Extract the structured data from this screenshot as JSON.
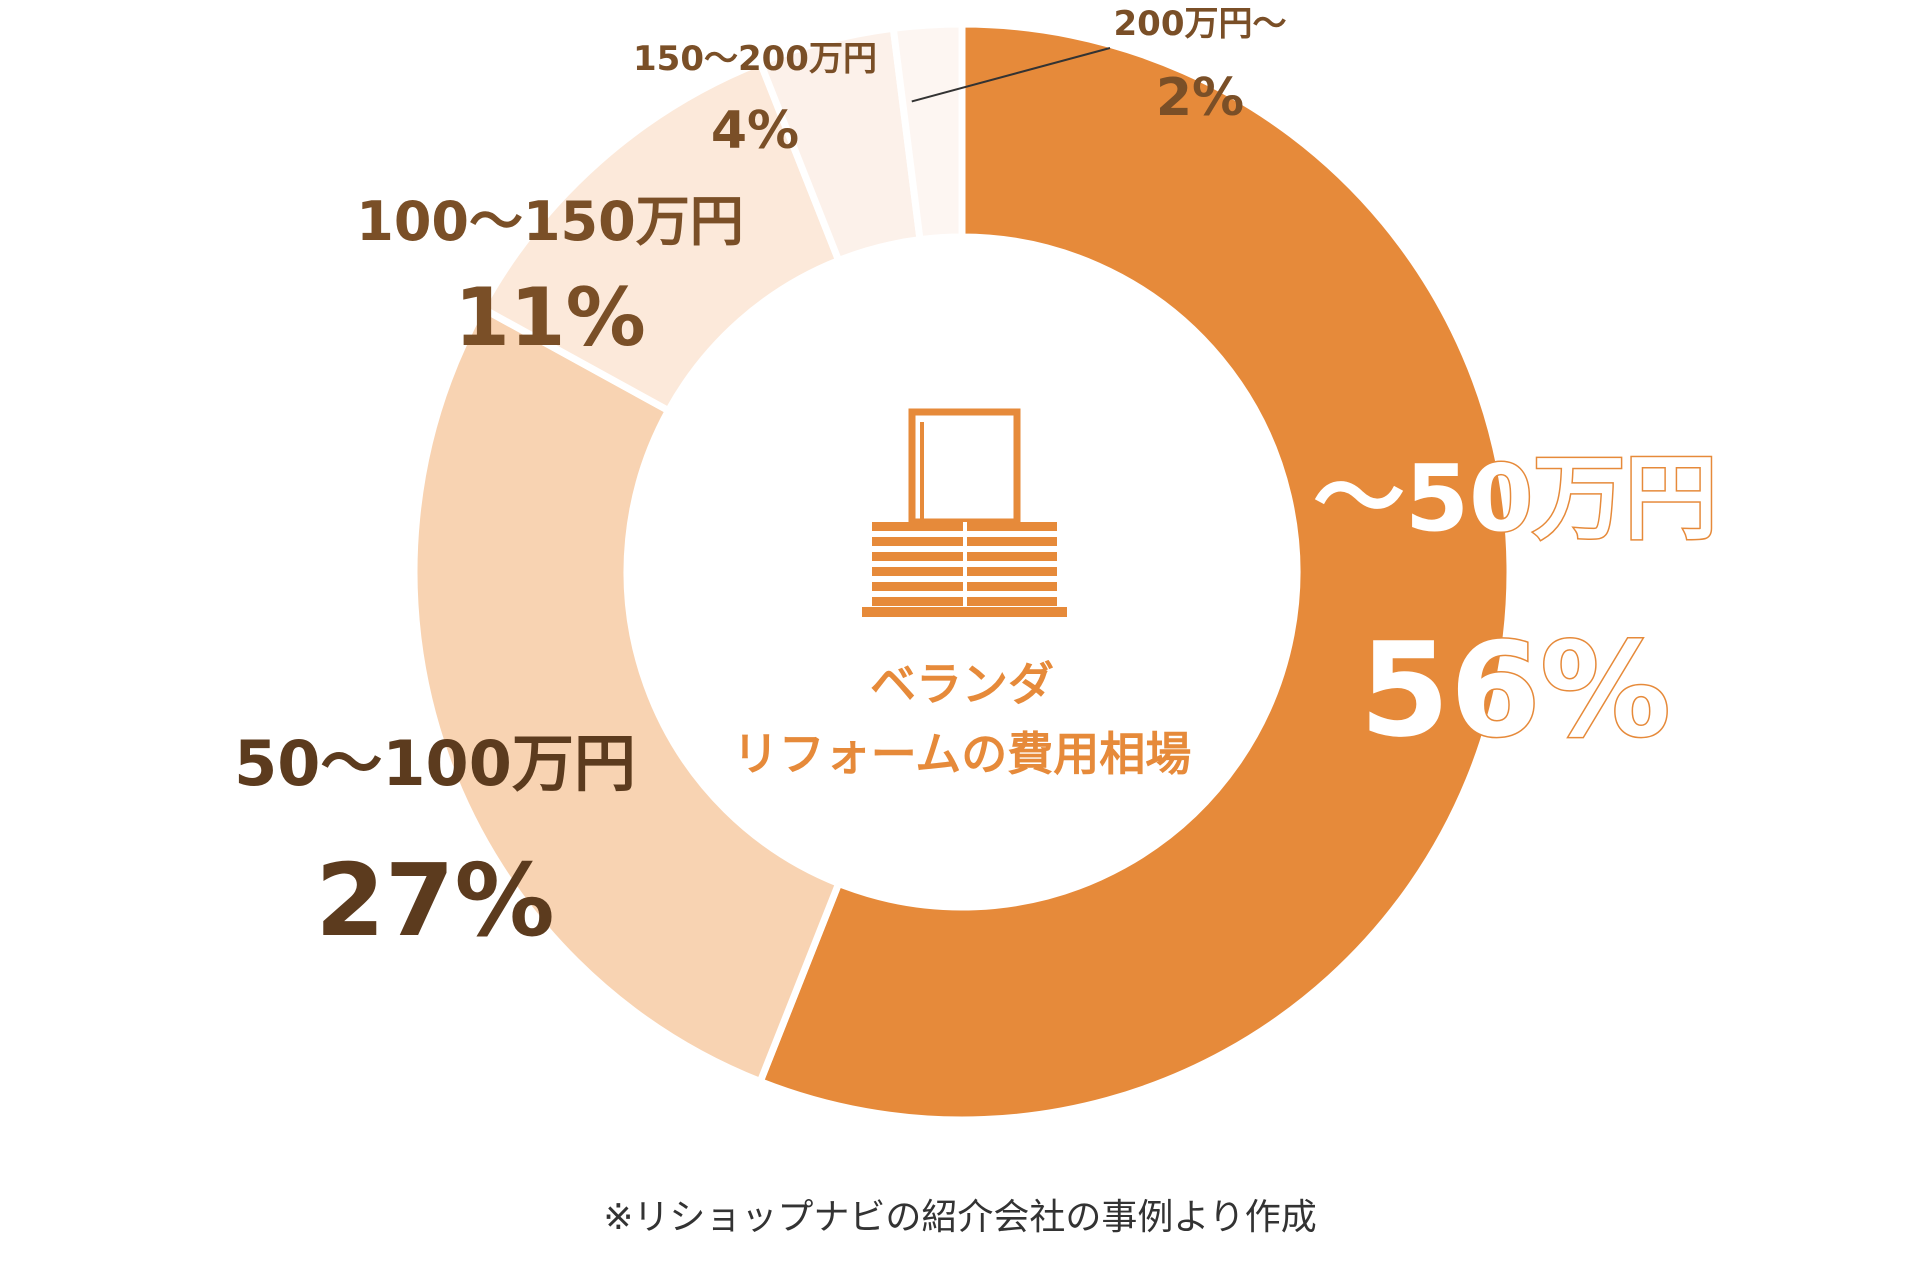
{
  "chart_data": {
    "type": "pie",
    "variant": "donut",
    "title": "ベランダ\nリフォームの費用相場",
    "title_lines": [
      "ベランダ",
      "リフォームの費用相場"
    ],
    "categories": [
      "〜50万円",
      "50〜100万円",
      "100〜150万円",
      "150〜200万円",
      "200万円〜"
    ],
    "values": [
      56,
      27,
      11,
      4,
      2
    ],
    "value_labels": [
      "56%",
      "27%",
      "11%",
      "4%",
      "2%"
    ],
    "unit": "%",
    "colors": [
      "#E68A3A",
      "#F8D3B2",
      "#FCE9DA",
      "#FCF1EA",
      "#FDF6F2"
    ],
    "label_colors": [
      "#ffffff",
      "#5C3B1E",
      "#7A4F27",
      "#7A4F27",
      "#7A4F27"
    ],
    "title_color": "#E68A3A",
    "icon": "veranda-railing-icon",
    "legend": "none",
    "grid": false
  },
  "footnote": "※リショップナビの紹介会社の事例より作成"
}
